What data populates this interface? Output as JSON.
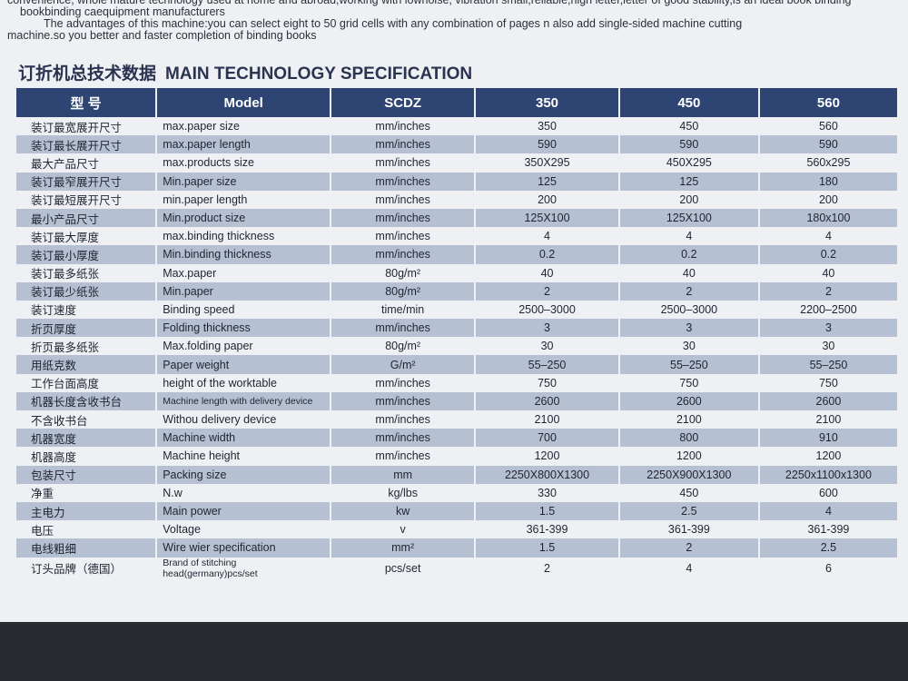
{
  "intro": [
    "convenience, whole mature technology used at home and abroad,working with lownoise, vibration small,reliable,high letter,letter of good stability,is an ideal book binding",
    "bookbinding caequipment manufacturers",
    "The advantages of this machine:you can select eight to 50 grid cells with any combination of pages n also add single-sided machine cutting",
    "machine.so you better and faster completion of binding books"
  ],
  "heading": {
    "chinese": "订折机总技术数据",
    "english": "MAIN TECHNOLOGY SPECIFICATION"
  },
  "table": {
    "header": [
      "型 号",
      "Model",
      "SCDZ",
      "350",
      "450",
      "560"
    ],
    "rows": [
      [
        "装订最宽展开尺寸",
        "max.paper size",
        "mm/inches",
        "350",
        "450",
        "560"
      ],
      [
        "装订最长展开尺寸",
        "max.paper length",
        "mm/inches",
        "590",
        "590",
        "590"
      ],
      [
        "最大产品尺寸",
        "max.products size",
        "mm/inches",
        "350X295",
        "450X295",
        "560x295"
      ],
      [
        "装订最窄展开尺寸",
        "Min.paper size",
        "mm/inches",
        "125",
        "125",
        "180"
      ],
      [
        "装订最短展开尺寸",
        "min.paper length",
        "mm/inches",
        "200",
        "200",
        "200"
      ],
      [
        "最小产品尺寸",
        "Min.product size",
        "mm/inches",
        "125X100",
        "125X100",
        "180x100"
      ],
      [
        "装订最大厚度",
        "max.binding thickness",
        "mm/inches",
        "4",
        "4",
        "4"
      ],
      [
        "装订最小厚度",
        "Min.binding thickness",
        "mm/inches",
        "0.2",
        "0.2",
        "0.2"
      ],
      [
        "装订最多纸张",
        "Max.paper",
        "80g/m²",
        "40",
        "40",
        "40"
      ],
      [
        "装订最少纸张",
        "Min.paper",
        "80g/m²",
        "2",
        "2",
        "2"
      ],
      [
        "装订速度",
        "Binding speed",
        "time/min",
        "2500–3000",
        "2500–3000",
        "2200–2500"
      ],
      [
        "折页厚度",
        "Folding thickness",
        "mm/inches",
        "3",
        "3",
        "3"
      ],
      [
        "折页最多纸张",
        "Max.folding paper",
        "80g/m²",
        "30",
        "30",
        "30"
      ],
      [
        "用纸克数",
        "Paper weight",
        "G/m²",
        "55–250",
        "55–250",
        "55–250"
      ],
      [
        "工作台面高度",
        "height of the worktable",
        "mm/inches",
        "750",
        "750",
        "750"
      ],
      [
        "机器长度含收书台",
        "Machine length with delivery device",
        "mm/inches",
        "2600",
        "2600",
        "2600"
      ],
      [
        "不含收书台",
        "Withou delivery device",
        "mm/inches",
        "2100",
        "2100",
        "2100"
      ],
      [
        "机器宽度",
        "Machine width",
        "mm/inches",
        "700",
        "800",
        "910"
      ],
      [
        "机器高度",
        "Machine height",
        "mm/inches",
        "1200",
        "1200",
        "1200"
      ],
      [
        "包装尺寸",
        "Packing size",
        "mm",
        "2250X800X1300",
        "2250X900X1300",
        "2250x1100x1300"
      ],
      [
        "净重",
        "N.w",
        "kg/lbs",
        "330",
        "450",
        "600"
      ],
      [
        "主电力",
        "Main power",
        "kw",
        "1.5",
        "2.5",
        "4"
      ],
      [
        "电压",
        "Voltage",
        "v",
        "361-399",
        "361-399",
        "361-399"
      ],
      [
        "电线粗细",
        "Wire wier specification",
        "mm²",
        "1.5",
        "2",
        "2.5"
      ],
      [
        "订头品牌（德国）",
        "Brand of stitching head(germany)pcs/set",
        "pcs/set",
        "2",
        "4",
        "6"
      ]
    ]
  }
}
